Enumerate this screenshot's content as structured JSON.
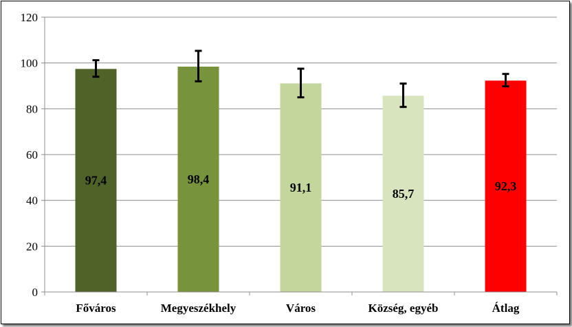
{
  "chart_data": {
    "type": "bar",
    "title": "",
    "xlabel": "",
    "ylabel": "",
    "ylim": [
      0,
      120
    ],
    "yticks": [
      0,
      20,
      40,
      60,
      80,
      100,
      120
    ],
    "grid": true,
    "legend": "none",
    "categories": [
      "Főváros",
      "Megyeszékhely",
      "Város",
      "Község, egyéb",
      "Átlag"
    ],
    "values": [
      97.4,
      98.4,
      91.1,
      85.7,
      92.3
    ],
    "value_labels": [
      "97,4",
      "98,4",
      "91,1",
      "85,7",
      "92,3"
    ],
    "error_bars": [
      {
        "low": 94.0,
        "high": 101.2
      },
      {
        "low": 92.0,
        "high": 105.3
      },
      {
        "low": 85.0,
        "high": 97.5
      },
      {
        "low": 80.8,
        "high": 91.0
      },
      {
        "low": 89.8,
        "high": 95.2
      }
    ],
    "colors": [
      "#4f6228",
      "#77933c",
      "#c3d69b",
      "#d7e4bd",
      "#ff0000"
    ]
  }
}
